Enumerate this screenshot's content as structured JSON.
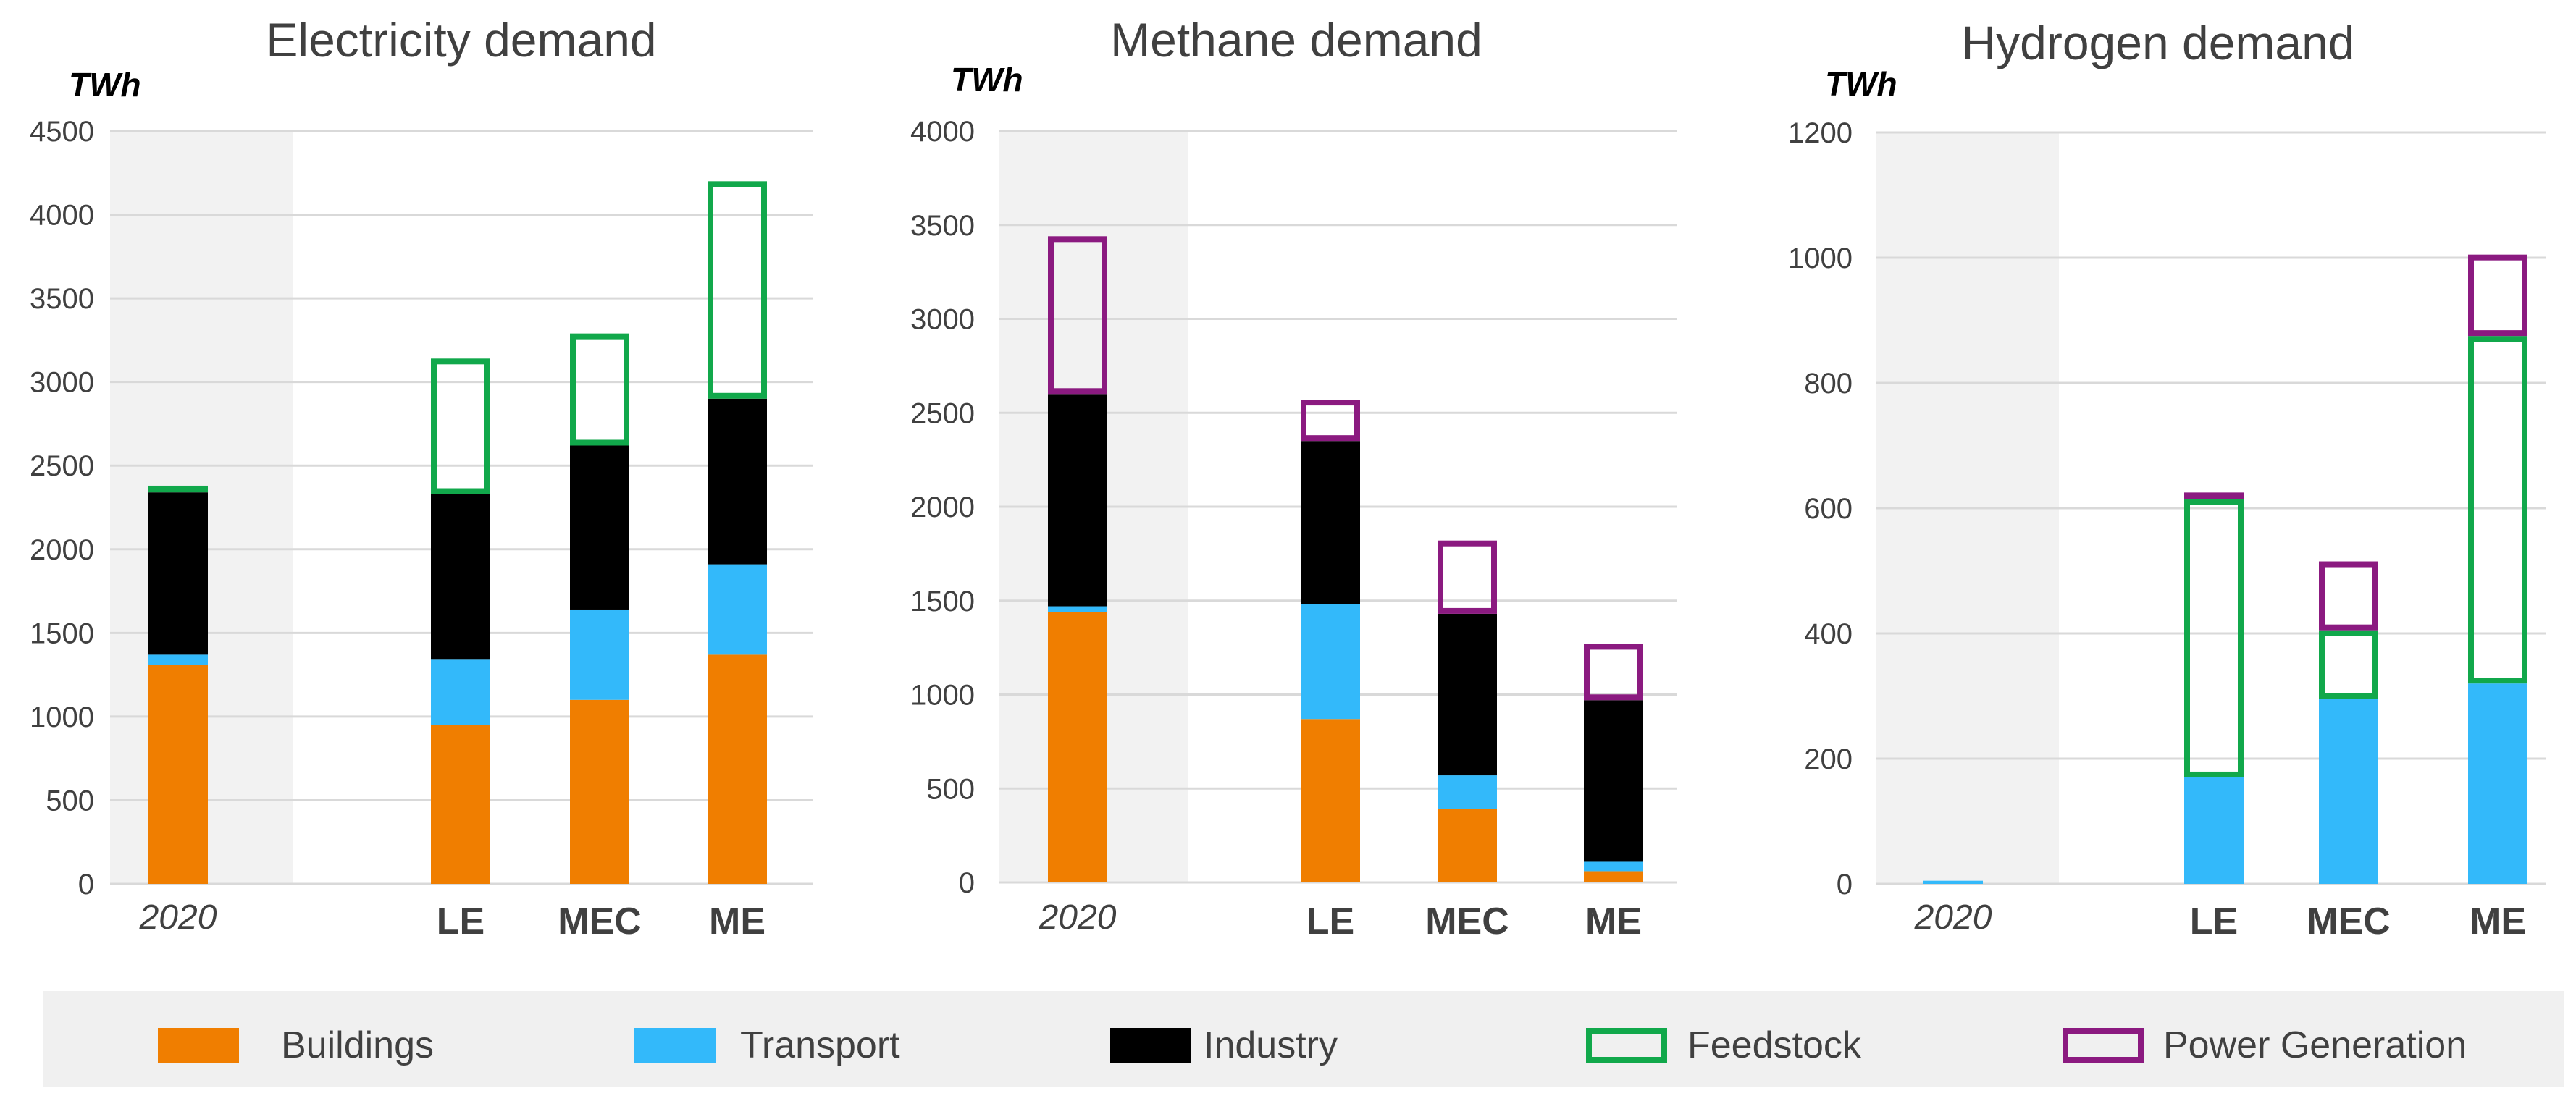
{
  "chart_data": [
    {
      "type": "stacked-bar",
      "title": "Electricity demand",
      "unit": "TWh",
      "ylim": [
        0,
        4500
      ],
      "ytick_step": 500,
      "ytick_labels": [
        "0",
        "500",
        "1000",
        "1500",
        "2000",
        "2500",
        "3000",
        "3500",
        "4000",
        "4500"
      ],
      "categories": [
        "2020",
        "LE",
        "MEC",
        "ME"
      ],
      "series": [
        {
          "name": "Buildings",
          "style": "fill",
          "values": [
            1310,
            950,
            1100,
            1370
          ]
        },
        {
          "name": "Transport",
          "style": "fill",
          "values": [
            60,
            390,
            540,
            540
          ]
        },
        {
          "name": "Industry",
          "style": "fill",
          "values": [
            970,
            990,
            980,
            990
          ]
        },
        {
          "name": "Feedstock",
          "style": "outline",
          "values": [
            40,
            810,
            670,
            1300
          ]
        },
        {
          "name": "Power Generation",
          "style": "outline",
          "values": [
            0,
            0,
            0,
            0
          ]
        }
      ]
    },
    {
      "type": "stacked-bar",
      "title": "Methane demand",
      "unit": "TWh",
      "ylim": [
        0,
        4000
      ],
      "ytick_step": 500,
      "ytick_labels": [
        "0",
        "500",
        "1000",
        "1500",
        "2000",
        "2500",
        "3000",
        "3500",
        "4000"
      ],
      "categories": [
        "2020",
        "LE",
        "MEC",
        "ME"
      ],
      "series": [
        {
          "name": "Buildings",
          "style": "fill",
          "values": [
            1440,
            870,
            390,
            60
          ]
        },
        {
          "name": "Transport",
          "style": "fill",
          "values": [
            30,
            610,
            180,
            50
          ]
        },
        {
          "name": "Industry",
          "style": "fill",
          "values": [
            1130,
            870,
            860,
            860
          ]
        },
        {
          "name": "Feedstock",
          "style": "outline",
          "values": [
            0,
            0,
            0,
            0
          ]
        },
        {
          "name": "Power Generation",
          "style": "outline",
          "values": [
            840,
            220,
            390,
            300
          ]
        }
      ]
    },
    {
      "type": "stacked-bar",
      "title": "Hydrogen demand",
      "unit": "TWh",
      "ylim": [
        0,
        1200
      ],
      "ytick_step": 200,
      "ytick_labels": [
        "0",
        "200",
        "400",
        "600",
        "800",
        "1000",
        "1200"
      ],
      "categories": [
        "2020",
        "LE",
        "MEC",
        "ME"
      ],
      "series": [
        {
          "name": "Buildings",
          "style": "fill",
          "values": [
            0,
            0,
            0,
            0
          ]
        },
        {
          "name": "Transport",
          "style": "fill",
          "values": [
            5,
            170,
            295,
            320
          ]
        },
        {
          "name": "Industry",
          "style": "fill",
          "values": [
            0,
            0,
            0,
            0
          ]
        },
        {
          "name": "Feedstock",
          "style": "outline",
          "values": [
            0,
            445,
            110,
            555
          ]
        },
        {
          "name": "Power Generation",
          "style": "outline",
          "values": [
            0,
            10,
            110,
            130
          ]
        }
      ]
    }
  ],
  "legend": [
    {
      "name": "Buildings",
      "style": "fill",
      "color": "#F07E00"
    },
    {
      "name": "Transport",
      "style": "fill",
      "color": "#33B9FA"
    },
    {
      "name": "Industry",
      "style": "fill",
      "color": "#000000"
    },
    {
      "name": "Feedstock",
      "style": "outline",
      "color": "#11A84B"
    },
    {
      "name": "Power Generation",
      "style": "outline",
      "color": "#8B1A80"
    }
  ],
  "colors": {
    "Buildings": "#F07E00",
    "Transport": "#33B9FA",
    "Industry": "#000000",
    "Feedstock": "#11A84B",
    "Power Generation": "#8B1A80",
    "baseline_shade": "#F2F2F2",
    "legend_band": "#F0F0F0",
    "gridline": "#D9D9D9"
  }
}
